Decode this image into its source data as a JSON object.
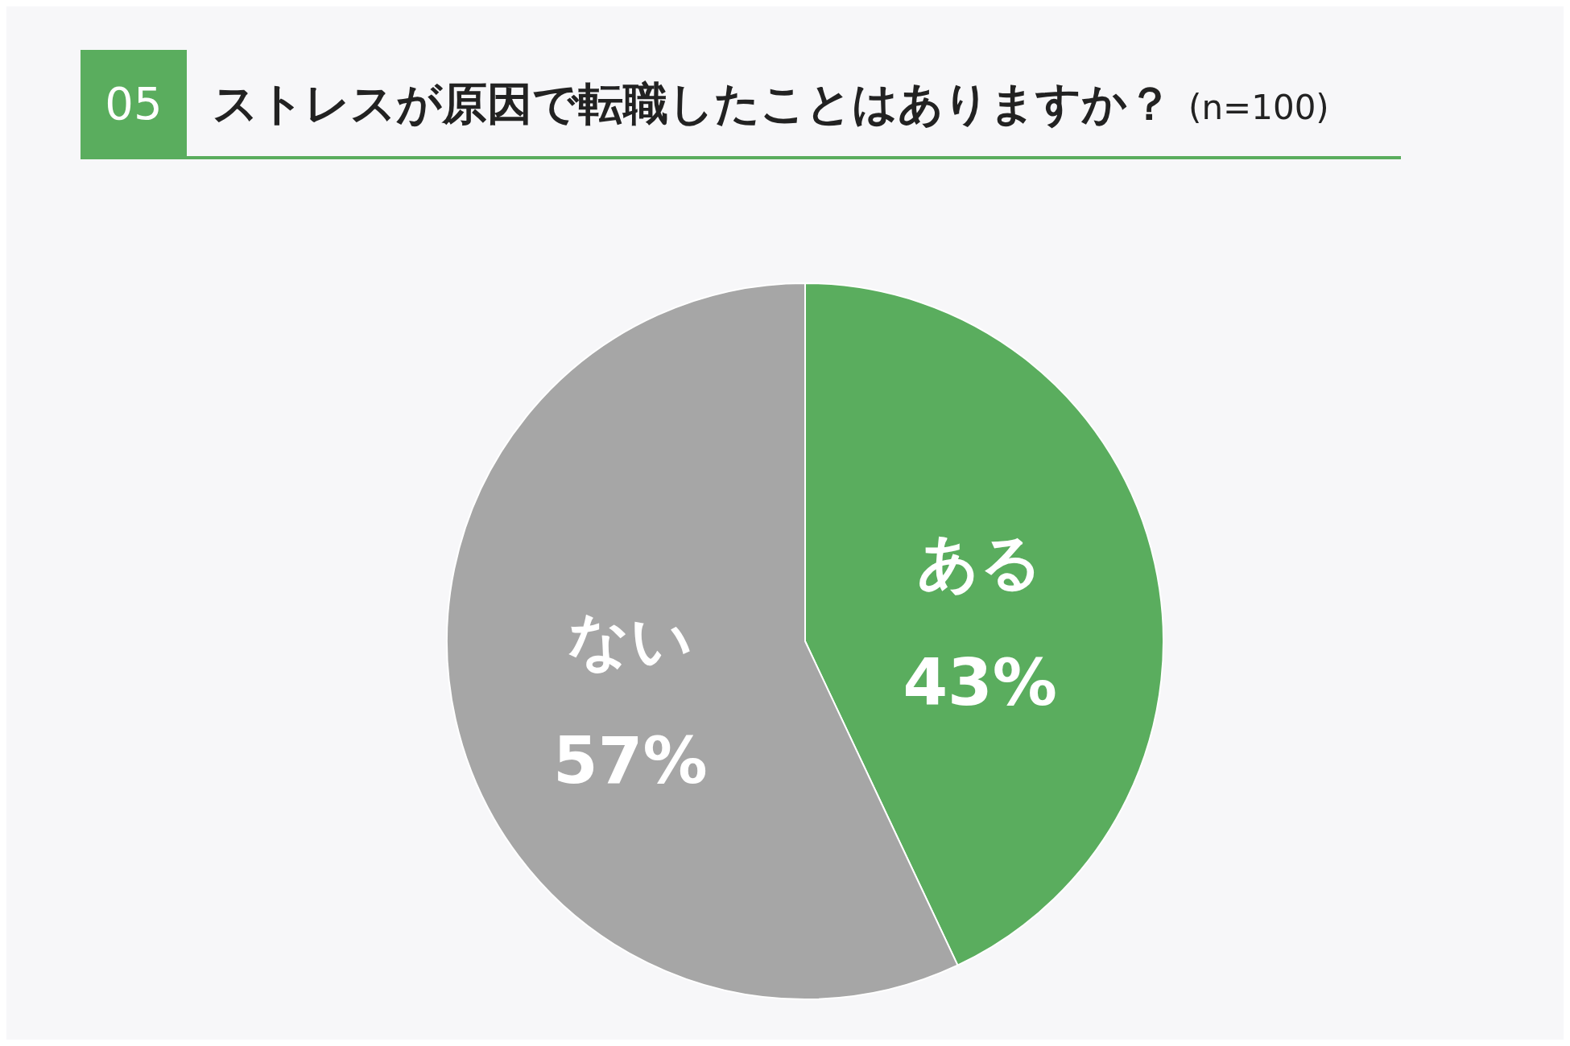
{
  "chart_data": {
    "type": "pie",
    "title": "ストレスが原因で転職したことはありますか？",
    "subtitle": "(n=100)",
    "annotations": [
      "05"
    ],
    "categories": [
      "ある",
      "ない"
    ],
    "values": [
      43,
      57
    ],
    "colors": [
      "#5aad5e",
      "#a6a6a6"
    ],
    "value_labels": [
      "43%",
      "57%"
    ],
    "legend": false
  }
}
